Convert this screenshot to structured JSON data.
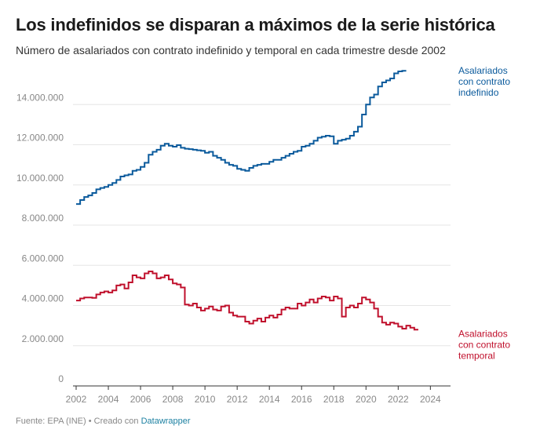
{
  "header": {
    "title": "Los indefinidos se disparan a máximos de la serie histórica",
    "subtitle": "Número de asalariados con contrato indefinido y temporal en cada trimestre desde 2002"
  },
  "footer": {
    "source": "Fuente: EPA (INE)",
    "separator": " • ",
    "created_with": "Creado con",
    "tool": "Datawrapper"
  },
  "colors": {
    "indefinido": "#0a5a9c",
    "temporal": "#c0102c",
    "grid": "#e6e6e6",
    "axis": "#333333"
  },
  "chart_data": {
    "type": "line",
    "step": true,
    "title": "Los indefinidos se disparan a máximos de la serie histórica",
    "xlabel": "",
    "ylabel": "",
    "xlim": [
      2002,
      2025.25
    ],
    "ylim": [
      0,
      16000000
    ],
    "x_ticks": [
      2002,
      2004,
      2006,
      2008,
      2010,
      2012,
      2014,
      2016,
      2018,
      2020,
      2022,
      2024
    ],
    "x_tick_labels": [
      "2002",
      "2004",
      "2006",
      "2008",
      "2010",
      "2012",
      "2014",
      "2016",
      "2018",
      "2020",
      "2022",
      "2024"
    ],
    "y_ticks": [
      0,
      2000000,
      4000000,
      6000000,
      8000000,
      10000000,
      12000000,
      14000000
    ],
    "y_tick_labels": [
      "0",
      "2.000.000",
      "4.000.000",
      "6.000.000",
      "8.000.000",
      "10.000.000",
      "12.000.000",
      "14.000.000"
    ],
    "x_start": 2002,
    "x_step": 0.25,
    "series": [
      {
        "name": "Asalariados con contrato indefinido",
        "label_lines": [
          "Asalariados",
          "con contrato",
          "indefinido"
        ],
        "color": "#0a5a9c",
        "values": [
          9050000,
          9250000,
          9400000,
          9480000,
          9600000,
          9780000,
          9850000,
          9900000,
          10000000,
          10100000,
          10250000,
          10420000,
          10480000,
          10520000,
          10700000,
          10750000,
          10900000,
          11100000,
          11500000,
          11650000,
          11750000,
          11950000,
          12050000,
          11950000,
          11900000,
          11980000,
          11850000,
          11800000,
          11780000,
          11750000,
          11720000,
          11700000,
          11600000,
          11650000,
          11450000,
          11350000,
          11250000,
          11100000,
          11000000,
          10950000,
          10800000,
          10750000,
          10700000,
          10850000,
          10950000,
          11000000,
          11050000,
          11050000,
          11150000,
          11250000,
          11250000,
          11350000,
          11450000,
          11550000,
          11650000,
          11700000,
          11900000,
          11950000,
          12050000,
          12200000,
          12350000,
          12400000,
          12450000,
          12420000,
          12050000,
          12200000,
          12250000,
          12300000,
          12450000,
          12650000,
          12900000,
          13500000,
          14000000,
          14350000,
          14500000,
          14900000,
          15100000,
          15200000,
          15300000,
          15550000,
          15650000,
          15680000
        ]
      },
      {
        "name": "Asalariados con contrato temporal",
        "label_lines": [
          "Asalariados",
          "con contrato",
          "temporal"
        ],
        "color": "#c0102c",
        "values": [
          4250000,
          4350000,
          4400000,
          4400000,
          4380000,
          4550000,
          4650000,
          4700000,
          4650000,
          4750000,
          5000000,
          5050000,
          4850000,
          5150000,
          5500000,
          5400000,
          5350000,
          5600000,
          5700000,
          5600000,
          5350000,
          5400000,
          5500000,
          5300000,
          5100000,
          5050000,
          4900000,
          4050000,
          4000000,
          4100000,
          3900000,
          3750000,
          3850000,
          3950000,
          3800000,
          3750000,
          3950000,
          4000000,
          3650000,
          3500000,
          3450000,
          3450000,
          3200000,
          3100000,
          3250000,
          3350000,
          3200000,
          3400000,
          3500000,
          3400000,
          3550000,
          3800000,
          3900000,
          3850000,
          3850000,
          4100000,
          4000000,
          4150000,
          4300000,
          4150000,
          4350000,
          4450000,
          4400000,
          4250000,
          4450000,
          4350000,
          3450000,
          3900000,
          4000000,
          3900000,
          4100000,
          4400000,
          4300000,
          4150000,
          3850000,
          3450000,
          3150000,
          3050000,
          3150000,
          3100000,
          2950000,
          2850000,
          3000000,
          2900000,
          2800000
        ]
      }
    ]
  }
}
